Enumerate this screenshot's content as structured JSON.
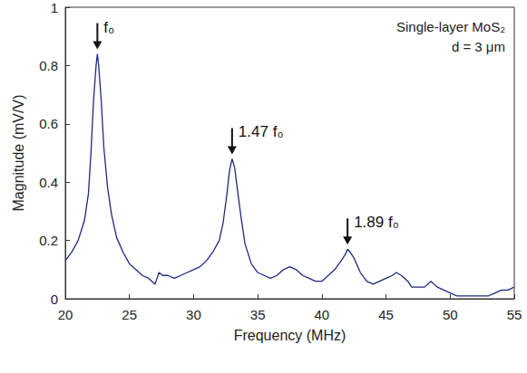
{
  "chart_data": {
    "type": "line",
    "x_label": "Frequency (MHz)",
    "y_label": "Magnitude (mV/V)",
    "color": "#1f2a80",
    "xlim": [
      20,
      55
    ],
    "xticks": [
      20,
      25,
      30,
      35,
      40,
      45,
      50,
      55
    ],
    "ylim": [
      0,
      1
    ],
    "yticks": [
      0,
      0.2,
      0.4,
      0.6,
      0.8,
      1
    ],
    "grid": false,
    "x": [
      20,
      20.5,
      21,
      21.5,
      21.8,
      22,
      22.2,
      22.4,
      22.5,
      22.6,
      22.8,
      23,
      23.3,
      23.6,
      24,
      24.5,
      25,
      25.5,
      26,
      26.5,
      27,
      27.3,
      27.6,
      28,
      28.5,
      29,
      29.5,
      30,
      30.5,
      31,
      31.5,
      32,
      32.3,
      32.6,
      32.8,
      33,
      33.2,
      33.4,
      33.7,
      34,
      34.5,
      35,
      35.5,
      36,
      36.5,
      37,
      37.5,
      38,
      38.5,
      39,
      39.5,
      40,
      40.5,
      41,
      41.5,
      41.8,
      42,
      42.2,
      42.5,
      43,
      43.5,
      44,
      44.5,
      45,
      45.5,
      45.8,
      46.2,
      46.7,
      47,
      47.5,
      48,
      48.5,
      49,
      49.5,
      50,
      50.5,
      51,
      51.5,
      52,
      52.5,
      53,
      53.5,
      54,
      54.5,
      55
    ],
    "values": [
      0.13,
      0.16,
      0.2,
      0.27,
      0.36,
      0.5,
      0.68,
      0.8,
      0.84,
      0.8,
      0.68,
      0.52,
      0.38,
      0.29,
      0.21,
      0.16,
      0.12,
      0.1,
      0.08,
      0.07,
      0.05,
      0.09,
      0.08,
      0.08,
      0.07,
      0.08,
      0.09,
      0.1,
      0.11,
      0.13,
      0.16,
      0.2,
      0.26,
      0.36,
      0.44,
      0.48,
      0.45,
      0.38,
      0.28,
      0.19,
      0.12,
      0.09,
      0.08,
      0.07,
      0.08,
      0.1,
      0.11,
      0.1,
      0.08,
      0.07,
      0.06,
      0.06,
      0.08,
      0.1,
      0.13,
      0.15,
      0.17,
      0.16,
      0.14,
      0.09,
      0.06,
      0.05,
      0.06,
      0.07,
      0.08,
      0.09,
      0.08,
      0.06,
      0.04,
      0.04,
      0.04,
      0.06,
      0.04,
      0.03,
      0.02,
      0.01,
      0.01,
      0.01,
      0.01,
      0.01,
      0.01,
      0.02,
      0.03,
      0.03,
      0.04
    ],
    "annotations": [
      {
        "text": "f₀",
        "x": 22.5,
        "y": 0.84
      },
      {
        "text": "1.47 f₀",
        "x": 33,
        "y": 0.48
      },
      {
        "text": "1.89 f₀",
        "x": 42,
        "y": 0.17
      }
    ],
    "inset_text": [
      "Single-layer MoS₂",
      "d = 3 μm"
    ]
  }
}
